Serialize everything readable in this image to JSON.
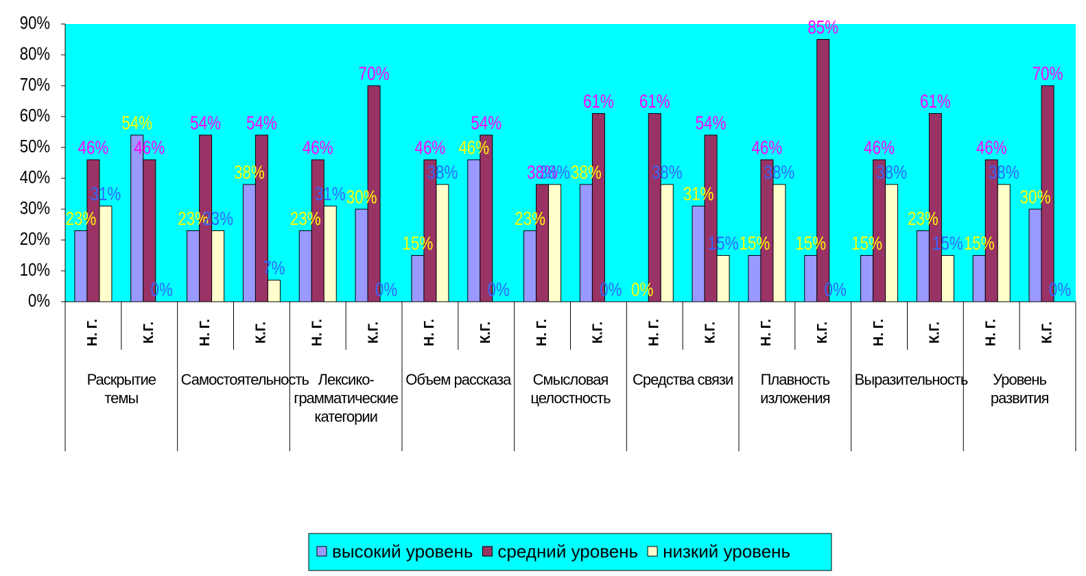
{
  "chart_data": {
    "type": "bar",
    "categories": [
      "Н. Г.",
      "К.Г.",
      "Н. Г.",
      "К.Г.",
      "Н. Г.",
      "К.Г.",
      "Н. Г.",
      "К.Г.",
      "Н. Г.",
      "К.Г.",
      "Н. Г.",
      "К.Г.",
      "Н. Г.",
      "К.Г.",
      "Н. Г.",
      "К.Г.",
      "Н. Г.",
      "К.Г."
    ],
    "groups": [
      "Раскрытие темы",
      "Самостоятельность",
      "Лексико-грамматические категории",
      "Объем рассказа",
      "Смысловая целостность",
      "Средства связи",
      "Плавность изложения",
      "Выразительность",
      "Уровень развития"
    ],
    "series": [
      {
        "name": "высокий уровень",
        "color": "#9999ff",
        "label_color": "#ffff00",
        "values": [
          23,
          54,
          23,
          38,
          23,
          30,
          15,
          46,
          23,
          38,
          0,
          31,
          15,
          15,
          15,
          23,
          15,
          30
        ],
        "value_labels": [
          "23%",
          "54%",
          "23%",
          "38%",
          "23%",
          "30%",
          "15%",
          "46%",
          "23%",
          "38%",
          "0%",
          "31%",
          "15%",
          "15%",
          "15%",
          "23%",
          "15%",
          "30%"
        ]
      },
      {
        "name": "средний уровень",
        "color": "#993366",
        "label_color": "#ff00ff",
        "values": [
          46,
          46,
          54,
          54,
          46,
          70,
          46,
          54,
          38,
          61,
          61,
          54,
          46,
          85,
          46,
          61,
          46,
          70
        ],
        "value_labels": [
          "46%",
          "46%",
          "54%",
          "54%",
          "46%",
          "70%",
          "46%",
          "54%",
          "38%",
          "61%",
          "61%",
          "54%",
          "46%",
          "85%",
          "46%",
          "61%",
          "46%",
          "70%"
        ]
      },
      {
        "name": "низкий уровень",
        "color": "#ffffcc",
        "label_color": "#3366ff",
        "values": [
          31,
          0,
          23,
          7,
          31,
          0,
          38,
          0,
          38,
          0,
          38,
          15,
          38,
          0,
          38,
          15,
          38,
          0
        ],
        "value_labels": [
          "31%",
          "0%",
          "23%",
          "7%",
          "31%",
          "0%",
          "38%",
          "0%",
          "38%",
          "0%",
          "38%",
          "15%",
          "38%",
          "0%",
          "38%",
          "15%",
          "38%",
          "0%"
        ]
      }
    ],
    "ylim": [
      0,
      90
    ],
    "yticks": [
      {
        "value": 0,
        "label": "0%"
      },
      {
        "value": 10,
        "label": "10%"
      },
      {
        "value": 20,
        "label": "20%"
      },
      {
        "value": 30,
        "label": "30%"
      },
      {
        "value": 40,
        "label": "40%"
      },
      {
        "value": 50,
        "label": "50%"
      },
      {
        "value": 60,
        "label": "60%"
      },
      {
        "value": 70,
        "label": "70%"
      },
      {
        "value": 80,
        "label": "80%"
      },
      {
        "value": 90,
        "label": "90%"
      }
    ],
    "grid": false,
    "legend": "bottom",
    "plot_background": "#00ffff"
  }
}
